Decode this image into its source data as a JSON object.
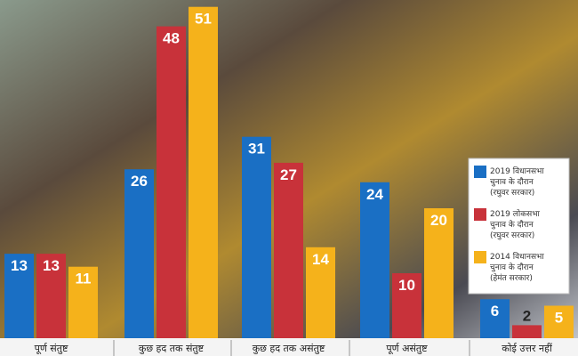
{
  "chart_data": {
    "type": "bar",
    "categories": [
      "पूर्ण संतुष्ट",
      "कुछ हद तक संतुष्ट",
      "कुछ हद तक असंतुष्ट",
      "पूर्ण असंतुष्ट",
      "कोई उत्तर नहीं"
    ],
    "series": [
      {
        "name": [
          "2019 विधानसभा",
          "चुनाव के दौरान",
          "(रघुवर सरकार)"
        ],
        "color": "#1a6fc4",
        "values": [
          13,
          26,
          31,
          24,
          6
        ]
      },
      {
        "name": [
          "2019 लोकसभा",
          "चुनाव के दौरान",
          "(रघुवर सरकार)"
        ],
        "color": "#c8323a",
        "values": [
          13,
          48,
          27,
          10,
          2
        ]
      },
      {
        "name": [
          "2014 विधानसभा",
          "चुनाव के दौरान",
          "(हेमंत सरकार)"
        ],
        "color": "#f5b21b",
        "values": [
          11,
          51,
          14,
          20,
          5
        ]
      }
    ]
  }
}
